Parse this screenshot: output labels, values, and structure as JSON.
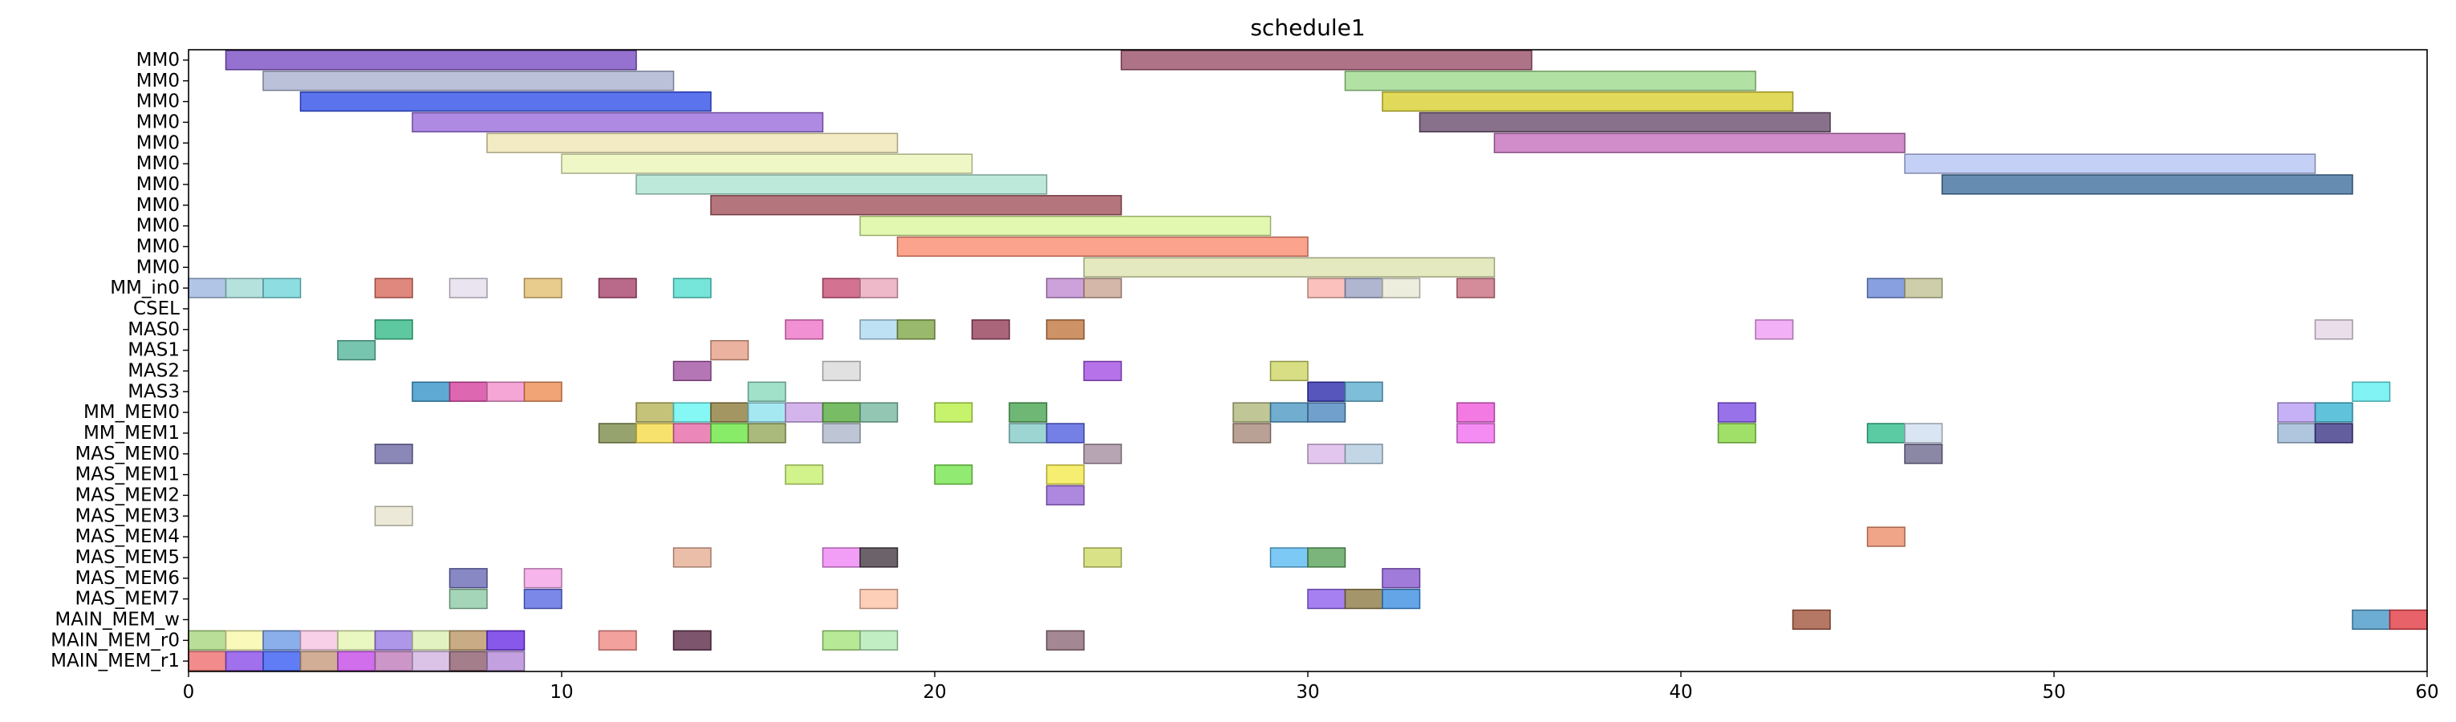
{
  "chart_data": {
    "type": "gantt",
    "title": "schedule1",
    "xlim": [
      0,
      60
    ],
    "x_ticks": [
      "0",
      "10",
      "20",
      "30",
      "40",
      "50",
      "60"
    ],
    "rows": [
      "MM0",
      "MM0",
      "MM0",
      "MM0",
      "MM0",
      "MM0",
      "MM0",
      "MM0",
      "MM0",
      "MM0",
      "MM0",
      "MM_in0",
      "CSEL",
      "MAS0",
      "MAS1",
      "MAS2",
      "MAS3",
      "MM_MEM0",
      "MM_MEM1",
      "MAS_MEM0",
      "MAS_MEM1",
      "MAS_MEM2",
      "MAS_MEM3",
      "MAS_MEM4",
      "MAS_MEM5",
      "MAS_MEM6",
      "MAS_MEM7",
      "MAIN_MEM_w",
      "MAIN_MEM_r0",
      "MAIN_MEM_r1"
    ],
    "bars": [
      {
        "row": 0,
        "start": 1,
        "end": 12,
        "color": "#7b4fc4"
      },
      {
        "row": 0,
        "start": 25,
        "end": 36,
        "color": "#9a5068"
      },
      {
        "row": 1,
        "start": 2,
        "end": 13,
        "color": "#aab2d0"
      },
      {
        "row": 1,
        "start": 31,
        "end": 42,
        "color": "#9ddb8c"
      },
      {
        "row": 2,
        "start": 3,
        "end": 14,
        "color": "#3350ea"
      },
      {
        "row": 2,
        "start": 32,
        "end": 43,
        "color": "#d9cf30"
      },
      {
        "row": 3,
        "start": 6,
        "end": 17,
        "color": "#9a6ddc"
      },
      {
        "row": 3,
        "start": 33,
        "end": 44,
        "color": "#6a4f6e"
      },
      {
        "row": 4,
        "start": 8,
        "end": 19,
        "color": "#f0e6b4"
      },
      {
        "row": 4,
        "start": 35,
        "end": 46,
        "color": "#c470bd"
      },
      {
        "row": 5,
        "start": 10,
        "end": 21,
        "color": "#ecf5b8"
      },
      {
        "row": 5,
        "start": 46,
        "end": 57,
        "color": "#b7c4f4"
      },
      {
        "row": 6,
        "start": 12,
        "end": 23,
        "color": "#ade4d1"
      },
      {
        "row": 6,
        "start": 47,
        "end": 58,
        "color": "#40709e"
      },
      {
        "row": 7,
        "start": 14,
        "end": 25,
        "color": "#a2525d"
      },
      {
        "row": 8,
        "start": 18,
        "end": 29,
        "color": "#dbf69c"
      },
      {
        "row": 9,
        "start": 19,
        "end": 30,
        "color": "#fb8c70"
      },
      {
        "row": 10,
        "start": 24,
        "end": 35,
        "color": "#dfe4b0"
      },
      {
        "row": 11,
        "start": 0,
        "end": 1,
        "color": "#9db8e0"
      },
      {
        "row": 11,
        "start": 1,
        "end": 2,
        "color": "#a2dbd5"
      },
      {
        "row": 11,
        "start": 2,
        "end": 3,
        "color": "#72d6d9"
      },
      {
        "row": 11,
        "start": 5,
        "end": 6,
        "color": "#d86a5c"
      },
      {
        "row": 11,
        "start": 7,
        "end": 8,
        "color": "#e5dcec"
      },
      {
        "row": 11,
        "start": 9,
        "end": 10,
        "color": "#e1bf72"
      },
      {
        "row": 11,
        "start": 11,
        "end": 12,
        "color": "#a8436d"
      },
      {
        "row": 11,
        "start": 13,
        "end": 14,
        "color": "#53dfcf"
      },
      {
        "row": 11,
        "start": 17,
        "end": 18,
        "color": "#c84f76"
      },
      {
        "row": 11,
        "start": 18,
        "end": 19,
        "color": "#eaa7ba"
      },
      {
        "row": 11,
        "start": 23,
        "end": 24,
        "color": "#c08ad0"
      },
      {
        "row": 11,
        "start": 24,
        "end": 25,
        "color": "#caa593"
      },
      {
        "row": 11,
        "start": 30,
        "end": 31,
        "color": "#f9b2ac"
      },
      {
        "row": 11,
        "start": 31,
        "end": 32,
        "color": "#9ca4c4"
      },
      {
        "row": 11,
        "start": 32,
        "end": 33,
        "color": "#e9e9d4"
      },
      {
        "row": 11,
        "start": 34,
        "end": 35,
        "color": "#c96f81"
      },
      {
        "row": 11,
        "start": 45,
        "end": 46,
        "color": "#6a87d8"
      },
      {
        "row": 11,
        "start": 46,
        "end": 47,
        "color": "#c2c195"
      },
      {
        "row": 13,
        "start": 5,
        "end": 6,
        "color": "#36bc88"
      },
      {
        "row": 13,
        "start": 16,
        "end": 17,
        "color": "#ee74c8"
      },
      {
        "row": 13,
        "start": 18,
        "end": 19,
        "color": "#aedaf1"
      },
      {
        "row": 13,
        "start": 19,
        "end": 20,
        "color": "#80a748"
      },
      {
        "row": 13,
        "start": 21,
        "end": 22,
        "color": "#953f5a"
      },
      {
        "row": 13,
        "start": 23,
        "end": 24,
        "color": "#c1773f"
      },
      {
        "row": 13,
        "start": 42,
        "end": 43,
        "color": "#ef9ef5"
      },
      {
        "row": 13,
        "start": 57,
        "end": 58,
        "color": "#e6d6e6"
      },
      {
        "row": 14,
        "start": 4,
        "end": 5,
        "color": "#55b59b"
      },
      {
        "row": 14,
        "start": 14,
        "end": 15,
        "color": "#e6a087"
      },
      {
        "row": 15,
        "start": 13,
        "end": 14,
        "color": "#a154a3"
      },
      {
        "row": 15,
        "start": 17,
        "end": 18,
        "color": "#d9d9d9"
      },
      {
        "row": 15,
        "start": 24,
        "end": 25,
        "color": "#a34fe4"
      },
      {
        "row": 15,
        "start": 29,
        "end": 30,
        "color": "#cdd665"
      },
      {
        "row": 16,
        "start": 6,
        "end": 7,
        "color": "#3593c9"
      },
      {
        "row": 16,
        "start": 7,
        "end": 8,
        "color": "#d6419e"
      },
      {
        "row": 16,
        "start": 8,
        "end": 9,
        "color": "#f38fcc"
      },
      {
        "row": 16,
        "start": 9,
        "end": 10,
        "color": "#ee8e55"
      },
      {
        "row": 16,
        "start": 15,
        "end": 16,
        "color": "#89dabb"
      },
      {
        "row": 16,
        "start": 30,
        "end": 31,
        "color": "#2c2cad"
      },
      {
        "row": 16,
        "start": 31,
        "end": 32,
        "color": "#5eaed0"
      },
      {
        "row": 16,
        "start": 58,
        "end": 59,
        "color": "#62eff1"
      },
      {
        "row": 17,
        "start": 12,
        "end": 13,
        "color": "#b7b359"
      },
      {
        "row": 17,
        "start": 13,
        "end": 14,
        "color": "#66f5f1"
      },
      {
        "row": 17,
        "start": 14,
        "end": 15,
        "color": "#8c7c3b"
      },
      {
        "row": 17,
        "start": 15,
        "end": 16,
        "color": "#8fe2ef"
      },
      {
        "row": 17,
        "start": 16,
        "end": 17,
        "color": "#c9a2e6"
      },
      {
        "row": 17,
        "start": 17,
        "end": 18,
        "color": "#56ab3e"
      },
      {
        "row": 17,
        "start": 18,
        "end": 19,
        "color": "#78b9a0"
      },
      {
        "row": 17,
        "start": 20,
        "end": 21,
        "color": "#b8ef47"
      },
      {
        "row": 17,
        "start": 22,
        "end": 23,
        "color": "#4aa553"
      },
      {
        "row": 17,
        "start": 28,
        "end": 29,
        "color": "#b0b87a"
      },
      {
        "row": 17,
        "start": 29,
        "end": 30,
        "color": "#4d98c2"
      },
      {
        "row": 17,
        "start": 30,
        "end": 31,
        "color": "#4f88bf"
      },
      {
        "row": 17,
        "start": 34,
        "end": 35,
        "color": "#ef59db"
      },
      {
        "row": 17,
        "start": 41,
        "end": 42,
        "color": "#7d4fe4"
      },
      {
        "row": 17,
        "start": 56,
        "end": 57,
        "color": "#b89cf4"
      },
      {
        "row": 17,
        "start": 57,
        "end": 58,
        "color": "#3ab4d2"
      },
      {
        "row": 18,
        "start": 11,
        "end": 12,
        "color": "#7c8c4a"
      },
      {
        "row": 18,
        "start": 12,
        "end": 13,
        "color": "#f6db4a"
      },
      {
        "row": 18,
        "start": 13,
        "end": 14,
        "color": "#e66aa7"
      },
      {
        "row": 18,
        "start": 14,
        "end": 15,
        "color": "#6ae743"
      },
      {
        "row": 18,
        "start": 15,
        "end": 16,
        "color": "#95a95c"
      },
      {
        "row": 18,
        "start": 17,
        "end": 18,
        "color": "#aeb7c9"
      },
      {
        "row": 18,
        "start": 22,
        "end": 23,
        "color": "#85cac8"
      },
      {
        "row": 18,
        "start": 23,
        "end": 24,
        "color": "#5160e0"
      },
      {
        "row": 18,
        "start": 28,
        "end": 29,
        "color": "#a88a7a"
      },
      {
        "row": 18,
        "start": 34,
        "end": 35,
        "color": "#f36ff0"
      },
      {
        "row": 18,
        "start": 41,
        "end": 42,
        "color": "#88d843"
      },
      {
        "row": 18,
        "start": 45,
        "end": 46,
        "color": "#32be8c"
      },
      {
        "row": 18,
        "start": 46,
        "end": 47,
        "color": "#d0dff0"
      },
      {
        "row": 18,
        "start": 56,
        "end": 57,
        "color": "#9cb8d6"
      },
      {
        "row": 18,
        "start": 57,
        "end": 58,
        "color": "#3c3684"
      },
      {
        "row": 19,
        "start": 5,
        "end": 6,
        "color": "#6e6aa6"
      },
      {
        "row": 19,
        "start": 24,
        "end": 25,
        "color": "#a68ea0"
      },
      {
        "row": 19,
        "start": 30,
        "end": 31,
        "color": "#dcb8ea"
      },
      {
        "row": 19,
        "start": 31,
        "end": 32,
        "color": "#b4cce0"
      },
      {
        "row": 19,
        "start": 46,
        "end": 47,
        "color": "#6e6a90"
      },
      {
        "row": 20,
        "start": 16,
        "end": 17,
        "color": "#c7ef6e"
      },
      {
        "row": 20,
        "start": 20,
        "end": 21,
        "color": "#76e54f"
      },
      {
        "row": 20,
        "start": 23,
        "end": 24,
        "color": "#f3ea4c"
      },
      {
        "row": 21,
        "start": 23,
        "end": 24,
        "color": "#9a6ad6"
      },
      {
        "row": 22,
        "start": 5,
        "end": 6,
        "color": "#e9e4ce"
      },
      {
        "row": 23,
        "start": 45,
        "end": 46,
        "color": "#ec8f6c"
      },
      {
        "row": 24,
        "start": 13,
        "end": 14,
        "color": "#e6ae94"
      },
      {
        "row": 24,
        "start": 17,
        "end": 18,
        "color": "#ef86f4"
      },
      {
        "row": 24,
        "start": 18,
        "end": 19,
        "color": "#473c45"
      },
      {
        "row": 24,
        "start": 24,
        "end": 25,
        "color": "#d1db6a"
      },
      {
        "row": 24,
        "start": 29,
        "end": 30,
        "color": "#5dbcf2"
      },
      {
        "row": 24,
        "start": 30,
        "end": 31,
        "color": "#5aa25a"
      },
      {
        "row": 25,
        "start": 7,
        "end": 8,
        "color": "#6a6ab6"
      },
      {
        "row": 25,
        "start": 9,
        "end": 10,
        "color": "#f4a2e6"
      },
      {
        "row": 25,
        "start": 32,
        "end": 33,
        "color": "#8a5ad0"
      },
      {
        "row": 26,
        "start": 7,
        "end": 8,
        "color": "#8fcba6"
      },
      {
        "row": 26,
        "start": 9,
        "end": 10,
        "color": "#5a6ae2"
      },
      {
        "row": 26,
        "start": 18,
        "end": 19,
        "color": "#fcc2a6"
      },
      {
        "row": 26,
        "start": 30,
        "end": 31,
        "color": "#9060ee"
      },
      {
        "row": 26,
        "start": 31,
        "end": 32,
        "color": "#8e7a46"
      },
      {
        "row": 26,
        "start": 32,
        "end": 33,
        "color": "#3d8fe2"
      },
      {
        "row": 27,
        "start": 43,
        "end": 44,
        "color": "#a2563e"
      },
      {
        "row": 27,
        "start": 58,
        "end": 59,
        "color": "#4a98c8"
      },
      {
        "row": 27,
        "start": 59,
        "end": 60,
        "color": "#e23c44"
      },
      {
        "row": 28,
        "start": 0,
        "end": 1,
        "color": "#a8d67e"
      },
      {
        "row": 28,
        "start": 1,
        "end": 2,
        "color": "#f7f9a8"
      },
      {
        "row": 28,
        "start": 2,
        "end": 3,
        "color": "#6e9be6"
      },
      {
        "row": 28,
        "start": 3,
        "end": 4,
        "color": "#f6c6e2"
      },
      {
        "row": 28,
        "start": 4,
        "end": 5,
        "color": "#e4f6b0"
      },
      {
        "row": 28,
        "start": 5,
        "end": 6,
        "color": "#9a7ce4"
      },
      {
        "row": 28,
        "start": 6,
        "end": 7,
        "color": "#dcefb2"
      },
      {
        "row": 28,
        "start": 7,
        "end": 8,
        "color": "#bc9766"
      },
      {
        "row": 28,
        "start": 8,
        "end": 9,
        "color": "#6a2ee6"
      },
      {
        "row": 28,
        "start": 11,
        "end": 12,
        "color": "#ef8a84"
      },
      {
        "row": 28,
        "start": 13,
        "end": 14,
        "color": "#5c2b48"
      },
      {
        "row": 28,
        "start": 17,
        "end": 18,
        "color": "#a4e27a"
      },
      {
        "row": 28,
        "start": 18,
        "end": 19,
        "color": "#b2eab4"
      },
      {
        "row": 28,
        "start": 23,
        "end": 24,
        "color": "#8c6a78"
      },
      {
        "row": 29,
        "start": 0,
        "end": 1,
        "color": "#ef6e6e"
      },
      {
        "row": 29,
        "start": 1,
        "end": 2,
        "color": "#8a4ee8"
      },
      {
        "row": 29,
        "start": 2,
        "end": 3,
        "color": "#3a5cf2"
      },
      {
        "row": 29,
        "start": 3,
        "end": 4,
        "color": "#c69a7a"
      },
      {
        "row": 29,
        "start": 4,
        "end": 5,
        "color": "#c44ae6"
      },
      {
        "row": 29,
        "start": 5,
        "end": 6,
        "color": "#c07cbc"
      },
      {
        "row": 29,
        "start": 6,
        "end": 7,
        "color": "#d2b4e2"
      },
      {
        "row": 29,
        "start": 7,
        "end": 8,
        "color": "#8e5e6e"
      },
      {
        "row": 29,
        "start": 8,
        "end": 9,
        "color": "#b48ad8"
      }
    ]
  }
}
